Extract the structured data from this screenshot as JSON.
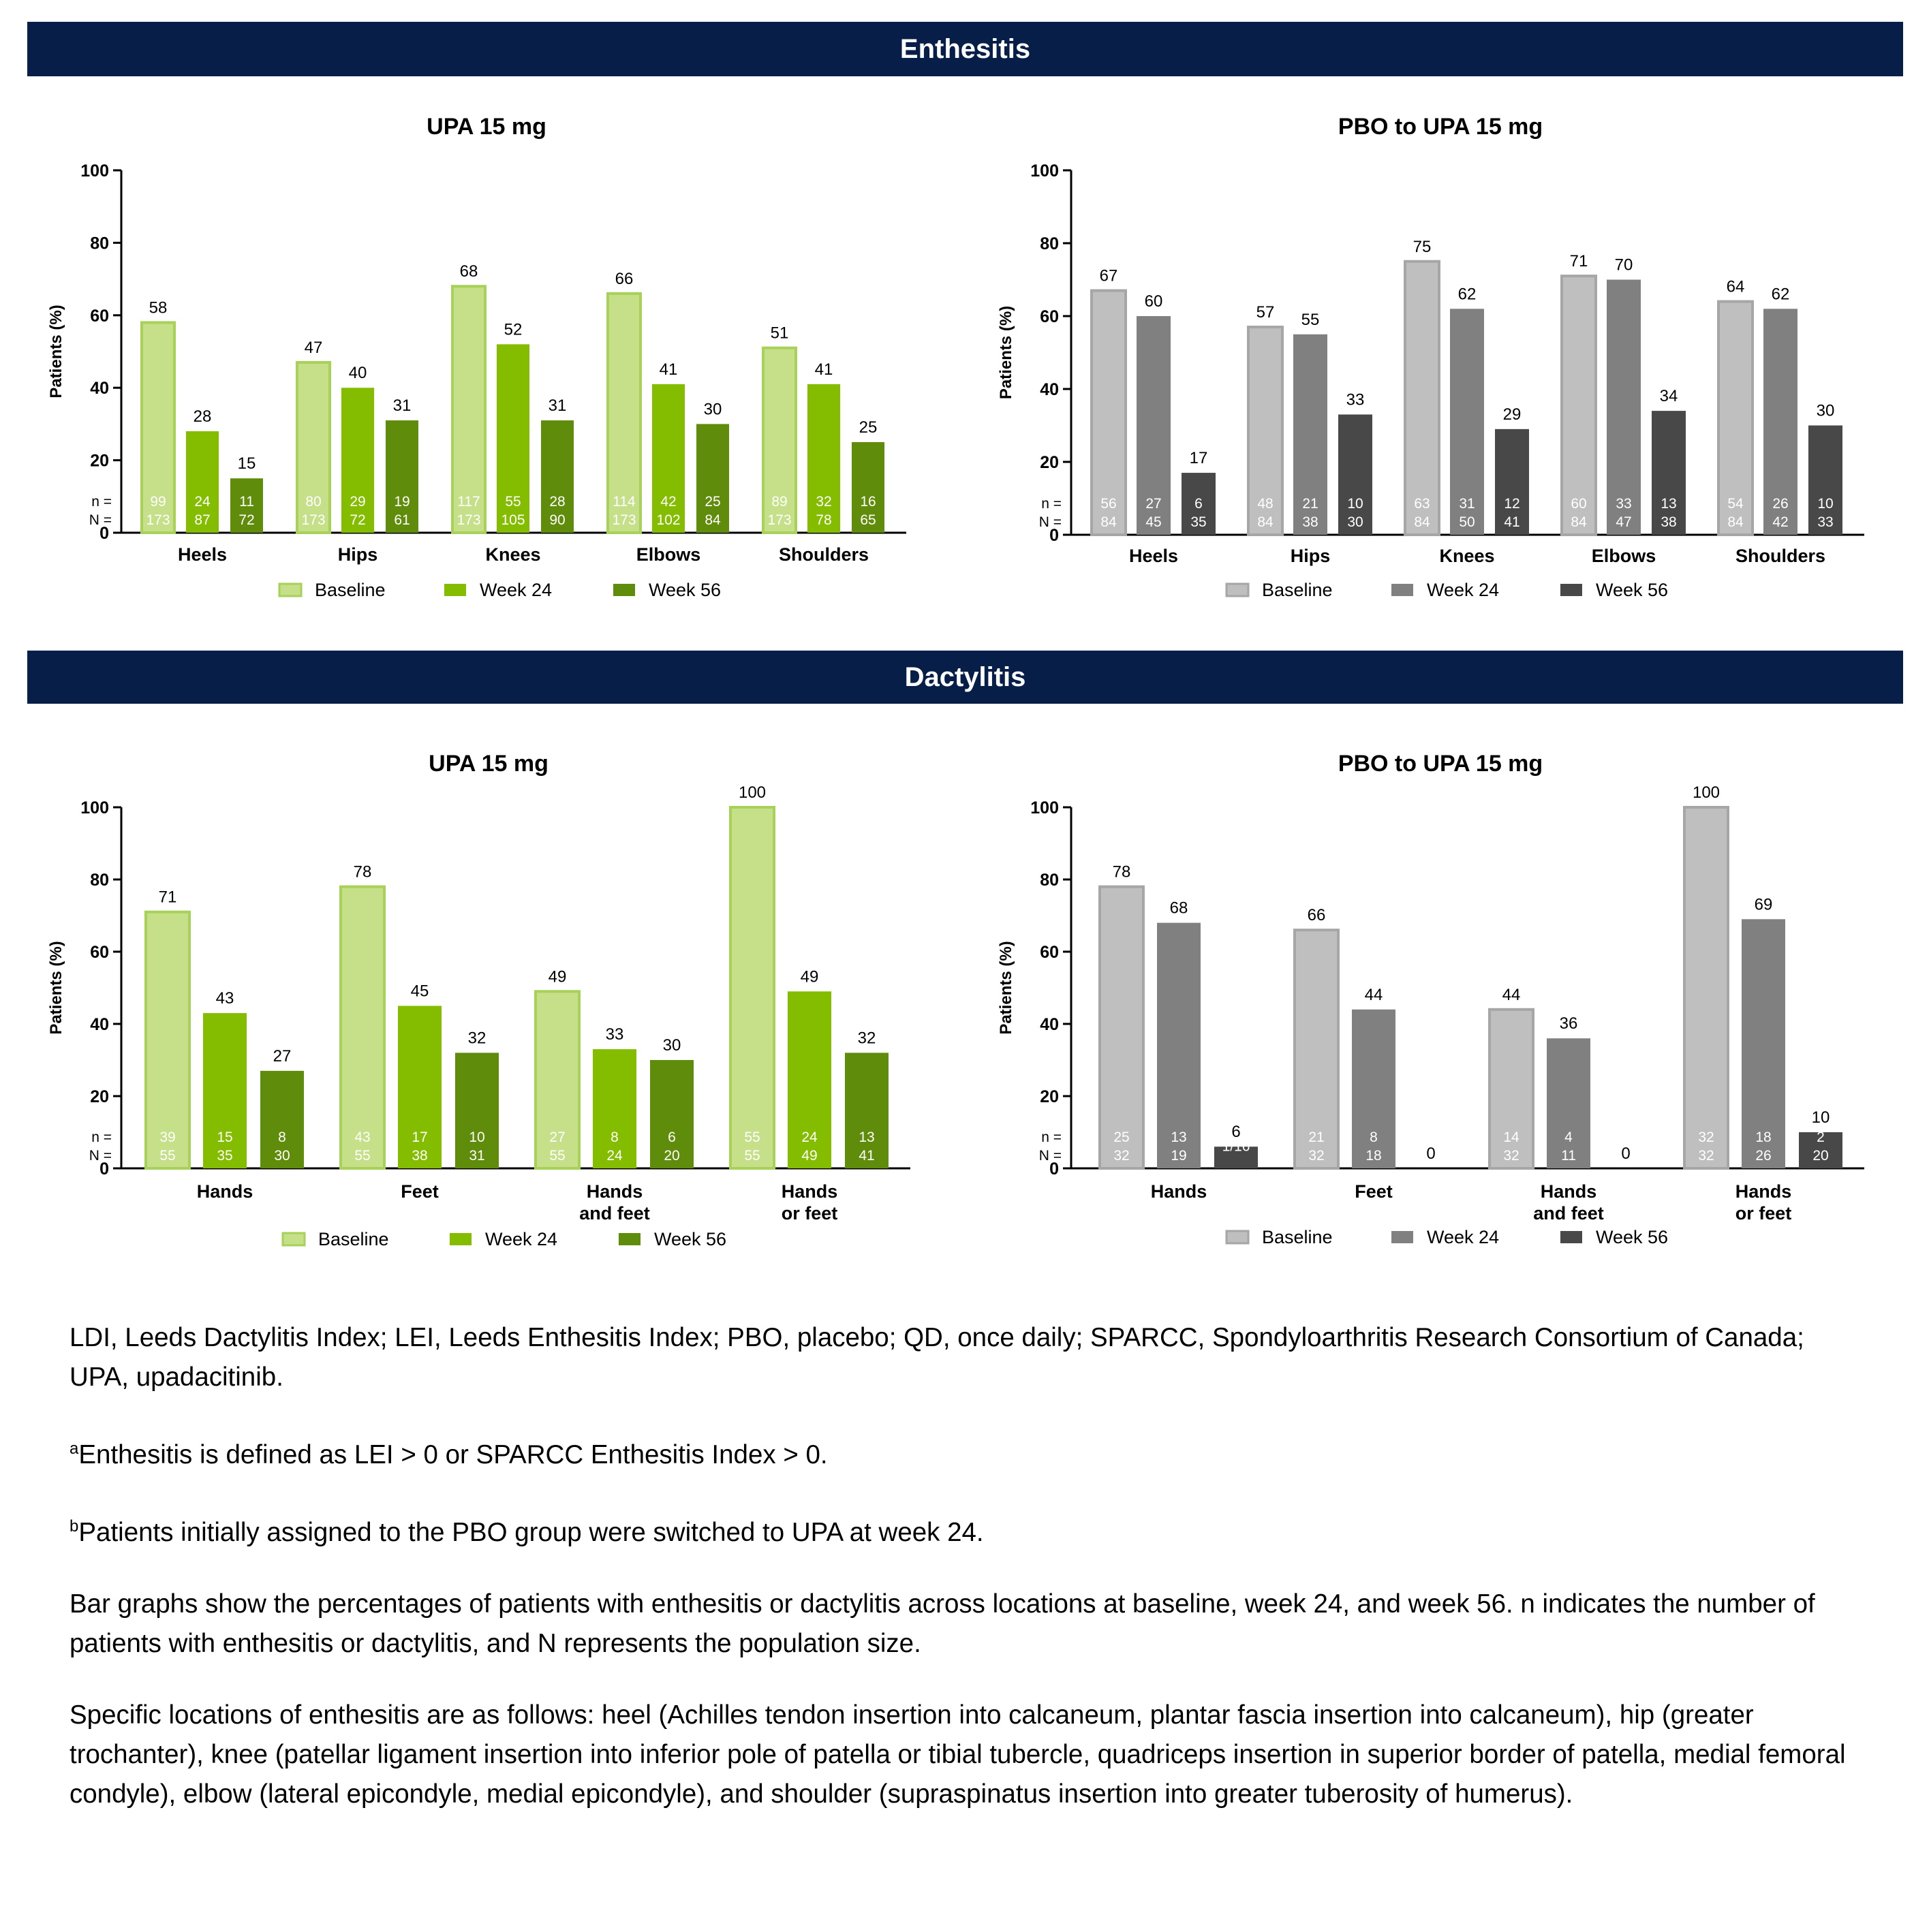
{
  "sections": {
    "enthesitis": "Enthesitis",
    "dactylitis": "Dactylitis"
  },
  "notes": {
    "abbrev": "LDI, Leeds Dactylitis Index; LEI, Leeds Enthesitis Index; PBO, placebo; QD, once daily; SPARCC, Spondyloarthritis Research Consortium of Canada; UPA, upadacitinib.",
    "a_mark": "a",
    "a_text": "Enthesitis is defined as LEI > 0 or SPARCC Enthesitis Index > 0.",
    "b_mark": "b",
    "b_text": "Patients initially assigned to the PBO group were switched to UPA at week 24.",
    "desc": "Bar graphs show the percentages of patients with enthesitis or dactylitis across locations at baseline, week 24, and week 56. n indicates the number of patients with enthesitis or dactylitis, and N represents the population size.",
    "locations": "Specific locations of enthesitis are as follows: heel (Achilles tendon insertion into calcaneum, plantar fascia insertion into calcaneum), hip (greater trochanter), knee (patellar ligament insertion into inferior pole of patella or tibial tubercle, quadriceps insertion in superior border of patella, medial femoral condyle), elbow (lateral epicondyle, medial epicondyle), and shoulder (supraspinatus insertion into greater tuberosity of humerus)."
  },
  "chart_data": [
    {
      "type": "bar",
      "title": "UPA 15 mg",
      "ylabel": "Patients (%)",
      "ylim": [
        0,
        100
      ],
      "yticks": [
        0,
        20,
        40,
        60,
        80,
        100
      ],
      "n_label": "n =",
      "N_label": "N =",
      "categories": [
        [
          "Heels"
        ],
        [
          "Hips"
        ],
        [
          "Knees"
        ],
        [
          "Elbows"
        ],
        [
          "Shoulders"
        ]
      ],
      "series": [
        {
          "name": "Baseline",
          "color": "#c5e088",
          "stroke": "#a8d15a",
          "values": [
            58,
            47,
            68,
            66,
            51
          ],
          "n": [
            "99",
            "80",
            "117",
            "114",
            "89"
          ],
          "N": [
            "173",
            "173",
            "173",
            "173",
            "173"
          ]
        },
        {
          "name": "Week 24",
          "color": "#84bd00",
          "values": [
            28,
            40,
            52,
            41,
            41
          ],
          "n": [
            "24",
            "29",
            "55",
            "42",
            "32"
          ],
          "N": [
            "87",
            "72",
            "105",
            "102",
            "78"
          ]
        },
        {
          "name": "Week 56",
          "color": "#5f8c0a",
          "values": [
            15,
            31,
            31,
            30,
            25
          ],
          "n": [
            "11",
            "19",
            "28",
            "25",
            "16"
          ],
          "N": [
            "72",
            "61",
            "90",
            "84",
            "65"
          ]
        }
      ]
    },
    {
      "type": "bar",
      "title": "PBO to UPA 15 mg",
      "ylabel": "Patients (%)",
      "ylim": [
        0,
        100
      ],
      "yticks": [
        0,
        20,
        40,
        60,
        80,
        100
      ],
      "n_label": "n =",
      "N_label": "N =",
      "categories": [
        [
          "Heels"
        ],
        [
          "Hips"
        ],
        [
          "Knees"
        ],
        [
          "Elbows"
        ],
        [
          "Shoulders"
        ]
      ],
      "series": [
        {
          "name": "Baseline",
          "color": "#bfbfbf",
          "stroke": "#a6a6a6",
          "values": [
            67,
            57,
            75,
            71,
            64
          ],
          "n": [
            "56",
            "48",
            "63",
            "60",
            "54"
          ],
          "N": [
            "84",
            "84",
            "84",
            "84",
            "84"
          ]
        },
        {
          "name": "Week 24",
          "color": "#808080",
          "values": [
            60,
            55,
            62,
            70,
            62
          ],
          "n": [
            "27",
            "21",
            "31",
            "33",
            "26"
          ],
          "N": [
            "45",
            "38",
            "50",
            "47",
            "42"
          ]
        },
        {
          "name": "Week 56",
          "color": "#484848",
          "values": [
            17,
            33,
            29,
            34,
            30
          ],
          "n": [
            "6",
            "10",
            "12",
            "13",
            "10"
          ],
          "N": [
            "35",
            "30",
            "41",
            "38",
            "33"
          ]
        }
      ]
    },
    {
      "type": "bar",
      "title": "UPA 15 mg",
      "ylabel": "Patients (%)",
      "ylim": [
        0,
        100
      ],
      "yticks": [
        0,
        20,
        40,
        60,
        80,
        100
      ],
      "n_label": "n =",
      "N_label": "N =",
      "categories": [
        [
          "Hands"
        ],
        [
          "Feet"
        ],
        [
          "Hands",
          "and feet"
        ],
        [
          "Hands",
          "or feet"
        ]
      ],
      "series": [
        {
          "name": "Baseline",
          "color": "#c5e088",
          "stroke": "#a8d15a",
          "values": [
            71,
            78,
            49,
            100
          ],
          "n": [
            "39",
            "43",
            "27",
            "55"
          ],
          "N": [
            "55",
            "55",
            "55",
            "55"
          ]
        },
        {
          "name": "Week 24",
          "color": "#84bd00",
          "values": [
            43,
            45,
            33,
            49
          ],
          "n": [
            "15",
            "17",
            "8",
            "24"
          ],
          "N": [
            "35",
            "38",
            "24",
            "49"
          ]
        },
        {
          "name": "Week 56",
          "color": "#5f8c0a",
          "values": [
            27,
            32,
            30,
            32
          ],
          "n": [
            "8",
            "10",
            "6",
            "13"
          ],
          "N": [
            "30",
            "31",
            "20",
            "41"
          ]
        }
      ]
    },
    {
      "type": "bar",
      "title": "PBO to UPA 15 mg",
      "ylabel": "Patients (%)",
      "ylim": [
        0,
        100
      ],
      "yticks": [
        0,
        20,
        40,
        60,
        80,
        100
      ],
      "n_label": "n =",
      "N_label": "N =",
      "categories": [
        [
          "Hands"
        ],
        [
          "Feet"
        ],
        [
          "Hands",
          "and feet"
        ],
        [
          "Hands",
          "or feet"
        ]
      ],
      "series": [
        {
          "name": "Baseline",
          "color": "#bfbfbf",
          "stroke": "#a6a6a6",
          "values": [
            78,
            66,
            44,
            100
          ],
          "n": [
            "25",
            "21",
            "14",
            "32"
          ],
          "N": [
            "32",
            "32",
            "32",
            "32"
          ]
        },
        {
          "name": "Week 24",
          "color": "#808080",
          "values": [
            68,
            44,
            36,
            69
          ],
          "n": [
            "13",
            "8",
            "4",
            "18"
          ],
          "N": [
            "19",
            "18",
            "11",
            "26"
          ]
        },
        {
          "name": "Week 56",
          "color": "#484848",
          "values": [
            6,
            0,
            0,
            10
          ],
          "n": [
            "1/16",
            "",
            "",
            "2"
          ],
          "N": [
            "",
            "",
            "",
            "20"
          ]
        }
      ]
    }
  ]
}
